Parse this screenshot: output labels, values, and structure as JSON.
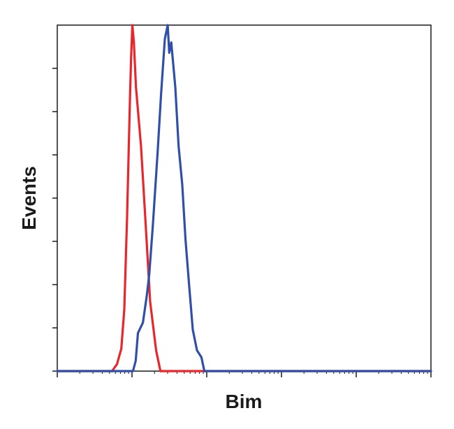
{
  "chart_data": {
    "type": "line",
    "title": "",
    "xlabel": "Bim",
    "ylabel": "Events",
    "x_scale": "log",
    "xlim": [
      1,
      100000
    ],
    "ylim": [
      0,
      100
    ],
    "grid": false,
    "legend": "none",
    "x_ticks": [
      1,
      10,
      100,
      1000,
      10000,
      100000
    ],
    "y_ticks": [
      0,
      12.5,
      25,
      37.5,
      50,
      62.5,
      75,
      87.5
    ],
    "series": [
      {
        "color": "#e8262b",
        "points": [
          [
            1,
            0
          ],
          [
            5.4,
            0
          ],
          [
            6.3,
            2
          ],
          [
            7.2,
            6.5
          ],
          [
            7.9,
            18
          ],
          [
            8.6,
            45
          ],
          [
            9.3,
            75
          ],
          [
            9.7,
            90
          ],
          [
            10.1,
            100
          ],
          [
            10.6,
            95
          ],
          [
            11.3,
            82
          ],
          [
            13.2,
            65
          ],
          [
            15.0,
            45
          ],
          [
            17.5,
            20
          ],
          [
            21.0,
            6
          ],
          [
            24.0,
            0
          ],
          [
            100000,
            0
          ]
        ]
      },
      {
        "color": "#2f4fa8",
        "points": [
          [
            1,
            0
          ],
          [
            10.3,
            0
          ],
          [
            11.2,
            3
          ],
          [
            12.0,
            11
          ],
          [
            14.0,
            14
          ],
          [
            15.8,
            22
          ],
          [
            17.0,
            28
          ],
          [
            19.0,
            42
          ],
          [
            22.0,
            63
          ],
          [
            24.5,
            80
          ],
          [
            27.5,
            96
          ],
          [
            30.0,
            100
          ],
          [
            31.5,
            92
          ],
          [
            33.5,
            95
          ],
          [
            35.5,
            89
          ],
          [
            38.0,
            82
          ],
          [
            42.0,
            65
          ],
          [
            47.0,
            54
          ],
          [
            52.0,
            38
          ],
          [
            58.0,
            25
          ],
          [
            65.0,
            12
          ],
          [
            74.0,
            6
          ],
          [
            85.0,
            4
          ],
          [
            93.0,
            0
          ],
          [
            100000,
            0
          ]
        ]
      }
    ]
  }
}
